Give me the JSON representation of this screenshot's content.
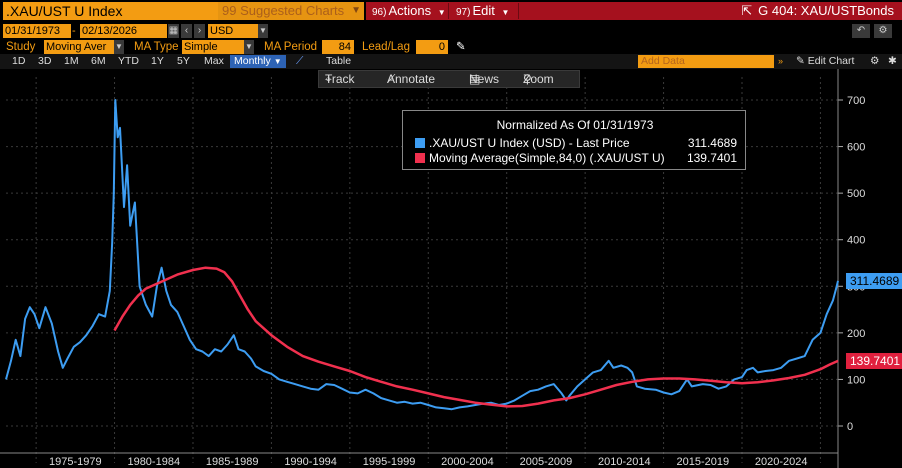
{
  "header": {
    "ticker": ".XAU/UST U Index",
    "suggested_num": "99",
    "suggested_label": "Suggested Charts",
    "actions_num": "96)",
    "actions_label": "Actions",
    "edit_num": "97)",
    "edit_label": "Edit",
    "title": "G 404: XAU/USTBonds"
  },
  "range": {
    "start": "01/31/1973",
    "end": "02/13/2026",
    "currency": "USD"
  },
  "study": {
    "study_label": "Study",
    "study_value": "Moving Aver",
    "ma_type_label": "MA Type",
    "ma_type_value": "Simple",
    "ma_period_label": "MA Period",
    "ma_period_value": "84",
    "lead_lag_label": "Lead/Lag",
    "lead_lag_value": "0"
  },
  "periods": [
    "1D",
    "3D",
    "1M",
    "6M",
    "YTD",
    "1Y",
    "5Y",
    "Max"
  ],
  "frequency": "Monthly",
  "table_label": "Table",
  "add_data_placeholder": "Add Data",
  "edit_chart_label": "Edit Chart",
  "toolbar": {
    "track": "Track",
    "annotate": "Annotate",
    "news": "News",
    "zoom": "Zoom"
  },
  "legend": {
    "title": "Normalized As Of 01/31/1973",
    "series1_name": ".XAU/UST U Index (USD) - Last Price",
    "series1_value": "311.4689",
    "series2_name": "Moving Average(Simple,84,0) (.XAU/UST U)",
    "series2_value": "139.7401"
  },
  "colors": {
    "price": "#3d9df2",
    "ma": "#f0304e",
    "accent": "#f39c12",
    "menu": "#a5111e"
  },
  "chart_data": {
    "type": "line",
    "yticks": [
      0,
      100,
      200,
      300,
      400,
      500,
      600,
      700
    ],
    "ylim": [
      -20,
      740
    ],
    "xlim": [
      1973.08,
      2026.12
    ],
    "xlabels": [
      {
        "label": "1975-1979",
        "center": 1977.5
      },
      {
        "label": "1980-1984",
        "center": 1982.5
      },
      {
        "label": "1985-1989",
        "center": 1987.5
      },
      {
        "label": "1990-1994",
        "center": 1992.5
      },
      {
        "label": "1995-1999",
        "center": 1997.5
      },
      {
        "label": "2000-2004",
        "center": 2002.5
      },
      {
        "label": "2005-2009",
        "center": 2007.5
      },
      {
        "label": "2010-2014",
        "center": 2012.5
      },
      {
        "label": "2015-2019",
        "center": 2017.5
      },
      {
        "label": "2020-2024",
        "center": 2022.5
      }
    ],
    "series": [
      {
        "name": ".XAU/UST U Index (USD) - Last Price",
        "last": 311.4689,
        "points": [
          [
            1973.08,
            100
          ],
          [
            1973.4,
            140
          ],
          [
            1973.7,
            185
          ],
          [
            1974.0,
            150
          ],
          [
            1974.3,
            230
          ],
          [
            1974.6,
            255
          ],
          [
            1974.9,
            240
          ],
          [
            1975.2,
            210
          ],
          [
            1975.6,
            255
          ],
          [
            1976.0,
            220
          ],
          [
            1976.4,
            160
          ],
          [
            1976.7,
            125
          ],
          [
            1977.0,
            145
          ],
          [
            1977.4,
            170
          ],
          [
            1977.8,
            180
          ],
          [
            1978.2,
            195
          ],
          [
            1978.6,
            215
          ],
          [
            1979.0,
            240
          ],
          [
            1979.4,
            235
          ],
          [
            1979.7,
            290
          ],
          [
            1979.85,
            395
          ],
          [
            1979.95,
            500
          ],
          [
            1980.05,
            700
          ],
          [
            1980.2,
            620
          ],
          [
            1980.35,
            640
          ],
          [
            1980.6,
            470
          ],
          [
            1980.8,
            560
          ],
          [
            1981.0,
            430
          ],
          [
            1981.3,
            480
          ],
          [
            1981.6,
            300
          ],
          [
            1982.0,
            260
          ],
          [
            1982.4,
            235
          ],
          [
            1982.7,
            300
          ],
          [
            1983.0,
            340
          ],
          [
            1983.3,
            290
          ],
          [
            1983.6,
            260
          ],
          [
            1984.0,
            245
          ],
          [
            1984.4,
            215
          ],
          [
            1984.8,
            185
          ],
          [
            1985.2,
            165
          ],
          [
            1985.6,
            160
          ],
          [
            1986.0,
            150
          ],
          [
            1986.4,
            165
          ],
          [
            1986.8,
            160
          ],
          [
            1987.2,
            175
          ],
          [
            1987.6,
            195
          ],
          [
            1987.9,
            165
          ],
          [
            1988.3,
            160
          ],
          [
            1988.7,
            145
          ],
          [
            1989.0,
            128
          ],
          [
            1989.5,
            118
          ],
          [
            1990.0,
            112
          ],
          [
            1990.5,
            100
          ],
          [
            1991.0,
            95
          ],
          [
            1991.5,
            90
          ],
          [
            1992.0,
            85
          ],
          [
            1992.5,
            80
          ],
          [
            1993.0,
            78
          ],
          [
            1993.5,
            90
          ],
          [
            1994.0,
            88
          ],
          [
            1994.5,
            80
          ],
          [
            1995.0,
            72
          ],
          [
            1995.5,
            70
          ],
          [
            1996.0,
            78
          ],
          [
            1996.5,
            70
          ],
          [
            1997.0,
            60
          ],
          [
            1997.5,
            55
          ],
          [
            1998.0,
            50
          ],
          [
            1998.5,
            52
          ],
          [
            1999.0,
            48
          ],
          [
            1999.5,
            50
          ],
          [
            2000.0,
            45
          ],
          [
            2000.5,
            40
          ],
          [
            2001.0,
            38
          ],
          [
            2001.5,
            36
          ],
          [
            2002.0,
            40
          ],
          [
            2002.5,
            42
          ],
          [
            2003.0,
            45
          ],
          [
            2003.5,
            48
          ],
          [
            2004.0,
            50
          ],
          [
            2004.5,
            45
          ],
          [
            2005.0,
            48
          ],
          [
            2005.5,
            55
          ],
          [
            2006.0,
            65
          ],
          [
            2006.5,
            75
          ],
          [
            2007.0,
            78
          ],
          [
            2007.5,
            85
          ],
          [
            2008.0,
            90
          ],
          [
            2008.5,
            70
          ],
          [
            2008.8,
            55
          ],
          [
            2009.0,
            65
          ],
          [
            2009.5,
            85
          ],
          [
            2010.0,
            100
          ],
          [
            2010.5,
            115
          ],
          [
            2011.0,
            120
          ],
          [
            2011.5,
            140
          ],
          [
            2011.8,
            125
          ],
          [
            2012.3,
            130
          ],
          [
            2012.7,
            125
          ],
          [
            2013.0,
            115
          ],
          [
            2013.3,
            85
          ],
          [
            2013.8,
            80
          ],
          [
            2014.5,
            78
          ],
          [
            2015.0,
            72
          ],
          [
            2015.5,
            68
          ],
          [
            2016.0,
            75
          ],
          [
            2016.5,
            100
          ],
          [
            2016.8,
            85
          ],
          [
            2017.5,
            90
          ],
          [
            2018.0,
            88
          ],
          [
            2018.5,
            80
          ],
          [
            2019.0,
            85
          ],
          [
            2019.5,
            100
          ],
          [
            2020.0,
            105
          ],
          [
            2020.3,
            120
          ],
          [
            2020.7,
            125
          ],
          [
            2021.0,
            115
          ],
          [
            2021.5,
            118
          ],
          [
            2022.0,
            120
          ],
          [
            2022.5,
            125
          ],
          [
            2023.0,
            140
          ],
          [
            2023.5,
            145
          ],
          [
            2024.0,
            150
          ],
          [
            2024.5,
            185
          ],
          [
            2025.0,
            200
          ],
          [
            2025.4,
            240
          ],
          [
            2025.8,
            270
          ],
          [
            2026.0,
            295
          ],
          [
            2026.12,
            311.47
          ]
        ]
      },
      {
        "name": "Moving Average(Simple,84,0) (.XAU/UST U)",
        "last": 139.7401,
        "points": [
          [
            1980.0,
            205
          ],
          [
            1980.5,
            235
          ],
          [
            1981.0,
            260
          ],
          [
            1981.5,
            280
          ],
          [
            1982.0,
            295
          ],
          [
            1983.0,
            310
          ],
          [
            1984.0,
            325
          ],
          [
            1985.0,
            335
          ],
          [
            1985.8,
            340
          ],
          [
            1986.5,
            338
          ],
          [
            1987.0,
            330
          ],
          [
            1987.5,
            310
          ],
          [
            1988.0,
            280
          ],
          [
            1988.5,
            250
          ],
          [
            1989.0,
            225
          ],
          [
            1990.0,
            195
          ],
          [
            1991.0,
            170
          ],
          [
            1992.0,
            150
          ],
          [
            1993.0,
            138
          ],
          [
            1994.0,
            128
          ],
          [
            1995.0,
            118
          ],
          [
            1996.0,
            105
          ],
          [
            1997.0,
            95
          ],
          [
            1998.0,
            85
          ],
          [
            1999.0,
            78
          ],
          [
            2000.0,
            70
          ],
          [
            2001.0,
            62
          ],
          [
            2002.0,
            56
          ],
          [
            2003.0,
            50
          ],
          [
            2004.0,
            46
          ],
          [
            2005.0,
            42
          ],
          [
            2006.0,
            43
          ],
          [
            2007.0,
            48
          ],
          [
            2008.0,
            55
          ],
          [
            2009.0,
            60
          ],
          [
            2010.0,
            68
          ],
          [
            2011.0,
            78
          ],
          [
            2012.0,
            88
          ],
          [
            2013.0,
            95
          ],
          [
            2014.0,
            100
          ],
          [
            2015.0,
            102
          ],
          [
            2016.0,
            102
          ],
          [
            2017.0,
            100
          ],
          [
            2018.0,
            97
          ],
          [
            2019.0,
            94
          ],
          [
            2020.0,
            92
          ],
          [
            2021.0,
            94
          ],
          [
            2022.0,
            98
          ],
          [
            2023.0,
            103
          ],
          [
            2024.0,
            110
          ],
          [
            2025.0,
            122
          ],
          [
            2025.6,
            132
          ],
          [
            2026.12,
            139.74
          ]
        ]
      }
    ]
  }
}
